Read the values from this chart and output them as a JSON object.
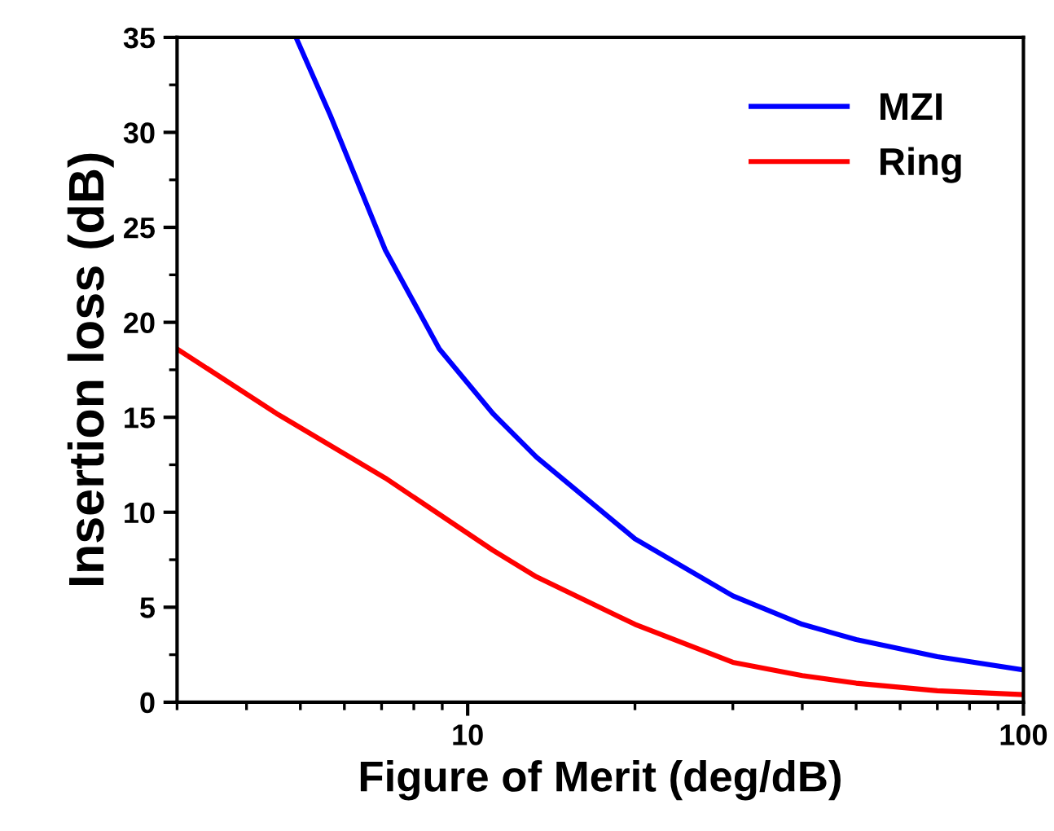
{
  "chart_data": {
    "type": "line",
    "xlabel": "Figure of Merit (deg/dB)",
    "ylabel": "Insertion loss (dB)",
    "log": "x",
    "xlim": [
      3,
      100
    ],
    "xticks": [
      10,
      100
    ],
    "ylim": [
      0,
      35
    ],
    "yticks": [
      0,
      5,
      10,
      15,
      20,
      25,
      30,
      35
    ],
    "grid": false,
    "legend": "top right",
    "marker": "none",
    "line_style": "solid",
    "series": [
      {
        "name": "MZI",
        "color": "#0000ff",
        "x": [
          4.91,
          5.66,
          7.11,
          8.89,
          11.1,
          13.3,
          20,
          30,
          40,
          50,
          70,
          100
        ],
        "values": [
          35,
          30.9,
          23.8,
          18.6,
          15.2,
          12.9,
          8.6,
          5.6,
          4.1,
          3.3,
          2.4,
          1.7
        ]
      },
      {
        "name": "Ring",
        "color": "#ff0000",
        "x": [
          3,
          4.53,
          7.11,
          11.1,
          13.3,
          20,
          30,
          40,
          50,
          70,
          100
        ],
        "values": [
          18.6,
          15.2,
          11.8,
          8.0,
          6.6,
          4.1,
          2.1,
          1.4,
          1.0,
          0.6,
          0.4
        ]
      }
    ]
  }
}
